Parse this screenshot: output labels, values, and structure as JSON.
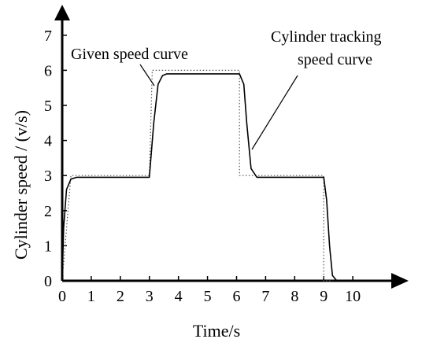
{
  "chart_data": {
    "type": "line",
    "xlabel": "Time/s",
    "ylabel": "Cylinder speed / (v/s)",
    "xlim": [
      0,
      10.5
    ],
    "ylim": [
      0,
      7.5
    ],
    "xticks": [
      0,
      1,
      2,
      3,
      4,
      5,
      6,
      7,
      8,
      9,
      10
    ],
    "yticks": [
      0,
      1,
      2,
      3,
      4,
      5,
      6,
      7
    ],
    "grid": false,
    "series": [
      {
        "name": "Given speed curve",
        "style": "dotted",
        "x": [
          0,
          0.3,
          3.0,
          3.1,
          6.1,
          6.1,
          9.0,
          9.0,
          9.3
        ],
        "y": [
          0,
          3.0,
          3.0,
          6.0,
          6.0,
          3.0,
          3.0,
          0,
          0
        ]
      },
      {
        "name": "Cylinder tracking speed curve",
        "style": "solid",
        "x": [
          0,
          0.05,
          0.15,
          0.3,
          0.5,
          3.0,
          3.15,
          3.3,
          3.45,
          3.6,
          6.1,
          6.25,
          6.35,
          6.5,
          6.7,
          9.0,
          9.1,
          9.2,
          9.3,
          9.45
        ],
        "y": [
          0,
          1.5,
          2.6,
          2.9,
          2.95,
          2.95,
          4.5,
          5.6,
          5.85,
          5.9,
          5.9,
          5.6,
          4.5,
          3.2,
          2.95,
          2.95,
          2.3,
          1.0,
          0.15,
          0
        ]
      }
    ],
    "annotations": [
      {
        "text": "Given speed curve",
        "series": "Given speed curve"
      },
      {
        "text": "Cylinder tracking",
        "text2": "speed curve",
        "series": "Cylinder tracking speed curve"
      }
    ]
  }
}
